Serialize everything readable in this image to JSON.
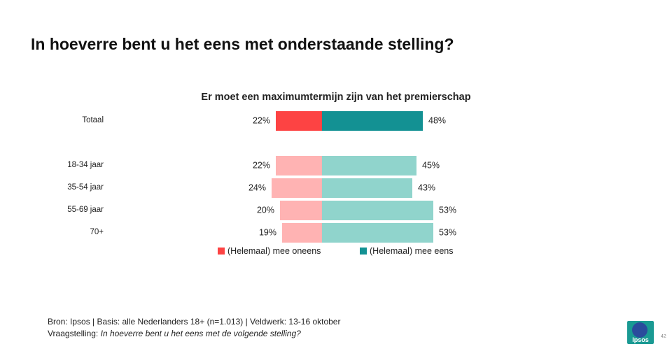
{
  "title": "In hoeverre bent u het eens met onderstaande stelling?",
  "chart_data": {
    "type": "bar",
    "orientation": "horizontal-diverging",
    "title": "Er moet een maximumtermijn zijn van het premierschap",
    "categories": [
      "Totaal",
      "18-34 jaar",
      "35-54 jaar",
      "55-69 jaar",
      "70+"
    ],
    "series": [
      {
        "name": "(Helemaal) mee oneens",
        "values": [
          22,
          22,
          24,
          20,
          19
        ],
        "labels": [
          "22%",
          "22%",
          "24%",
          "20%",
          "19%"
        ]
      },
      {
        "name": "(Helemaal) mee eens",
        "values": [
          48,
          45,
          43,
          53,
          53
        ],
        "labels": [
          "48%",
          "45%",
          "43%",
          "53%",
          "53%"
        ]
      }
    ],
    "unit": "%",
    "colors": {
      "disagree_total": "#fd4343",
      "agree_total": "#139193",
      "disagree_group": "#ffb3b3",
      "agree_group": "#90d4cc"
    },
    "legend_position": "bottom",
    "grid": false
  },
  "legend": {
    "disagree": "(Helemaal) mee oneens",
    "agree": "(Helemaal) mee eens"
  },
  "footer": {
    "source": "Bron: Ipsos | Basis: alle Nederlanders  18+ (n=1.013)  | Veldwerk:  13-16  oktober",
    "question_prefix": "Vraagstelling:",
    "question_text": "In hoeverre  bent u het eens met de volgende  stelling?"
  },
  "logo_text": "Ipsos",
  "page_number": "42"
}
